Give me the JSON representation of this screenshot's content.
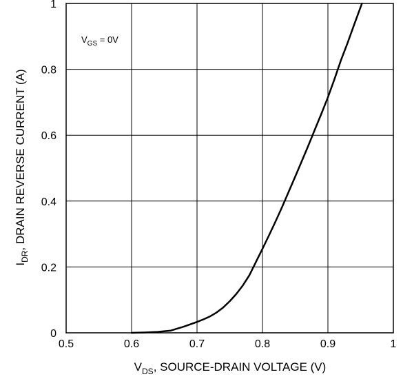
{
  "chart_data": {
    "type": "line",
    "xlabel": {
      "main": "V",
      "sub": "DS",
      "rest": ", SOURCE-DRAIN VOLTAGE (V)"
    },
    "ylabel": {
      "main": "I",
      "sub": "DR",
      "rest": ", DRAIN REVERSE CURRENT (A)"
    },
    "annotation": {
      "main": "V",
      "sub": "GS",
      "rest": " = 0V"
    },
    "xlim": [
      0.5,
      1.0
    ],
    "ylim": [
      0,
      1.0
    ],
    "x_ticks": [
      0.5,
      0.6,
      0.7,
      0.8,
      0.9,
      1.0
    ],
    "x_tick_labels": [
      "0.5",
      "0.6",
      "0.7",
      "0.8",
      "0.9",
      "1"
    ],
    "y_ticks": [
      0,
      0.2,
      0.4,
      0.6,
      0.8,
      1.0
    ],
    "y_tick_labels": [
      "0",
      "0.2",
      "0.4",
      "0.6",
      "0.8",
      "1"
    ],
    "grid": true,
    "series": [
      {
        "color": "#000000",
        "x": [
          0.6,
          0.62,
          0.64,
          0.66,
          0.67,
          0.68,
          0.69,
          0.7,
          0.71,
          0.72,
          0.73,
          0.74,
          0.75,
          0.76,
          0.77,
          0.78,
          0.79,
          0.8,
          0.81,
          0.82,
          0.83,
          0.84,
          0.85,
          0.86,
          0.87,
          0.88,
          0.89,
          0.9,
          0.91,
          0.92,
          0.93,
          0.94,
          0.952
        ],
        "y": [
          0.0,
          0.001,
          0.003,
          0.007,
          0.013,
          0.019,
          0.026,
          0.033,
          0.041,
          0.05,
          0.062,
          0.077,
          0.096,
          0.118,
          0.144,
          0.175,
          0.215,
          0.255,
          0.296,
          0.338,
          0.382,
          0.428,
          0.474,
          0.521,
          0.568,
          0.617,
          0.665,
          0.715,
          0.77,
          0.828,
          0.88,
          0.935,
          1.0
        ]
      }
    ]
  }
}
